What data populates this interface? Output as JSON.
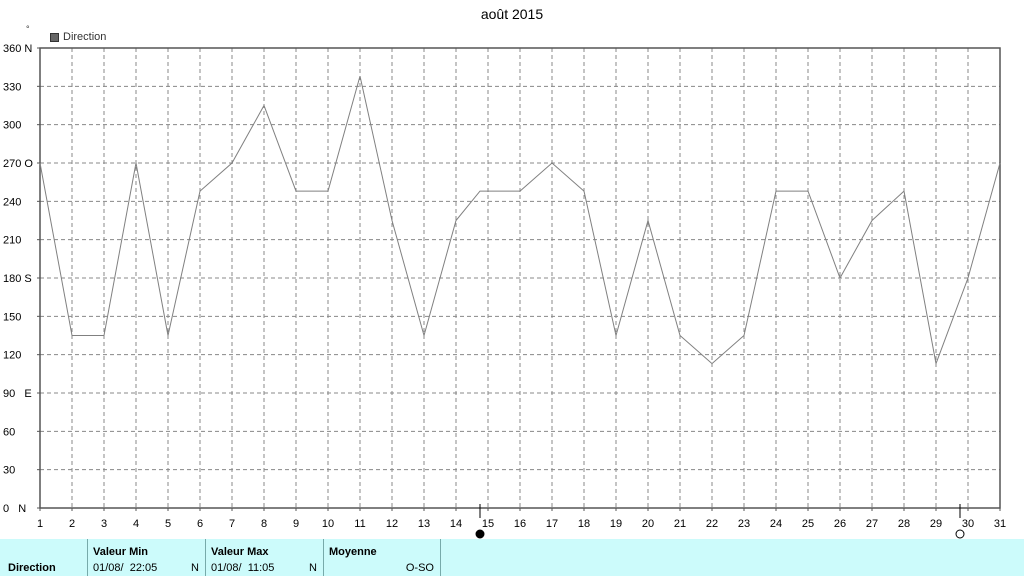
{
  "title": "août 2015",
  "legend": {
    "label": "Direction"
  },
  "degree_mark": "°",
  "footer": {
    "row_label": "Direction",
    "min": {
      "header": "Valeur Min",
      "date": "01/08/  22:05",
      "dir": "N"
    },
    "max": {
      "header": "Valeur Max",
      "date": "01/08/  11:05",
      "dir": "N"
    },
    "avg": {
      "header": "Moyenne",
      "value": "O-SO"
    }
  },
  "chart_data": {
    "type": "line",
    "title": "août 2015",
    "ylim": [
      0,
      360
    ],
    "xlim": [
      1,
      31
    ],
    "grid": true,
    "legend_position": "top-left",
    "y_ticks": [
      {
        "v": 0,
        "label": "0   N"
      },
      {
        "v": 30,
        "label": "30"
      },
      {
        "v": 60,
        "label": "60"
      },
      {
        "v": 90,
        "label": "90   E"
      },
      {
        "v": 120,
        "label": "120"
      },
      {
        "v": 150,
        "label": "150"
      },
      {
        "v": 180,
        "label": "180 S"
      },
      {
        "v": 210,
        "label": "210"
      },
      {
        "v": 240,
        "label": "240"
      },
      {
        "v": 270,
        "label": "270 O"
      },
      {
        "v": 300,
        "label": "300"
      },
      {
        "v": 330,
        "label": "330"
      },
      {
        "v": 360,
        "label": "360 N"
      }
    ],
    "x_ticks": [
      "1",
      "2",
      "3",
      "4",
      "5",
      "6",
      "7",
      "8",
      "9",
      "10",
      "11",
      "12",
      "13",
      "14",
      "15",
      "16",
      "17",
      "18",
      "19",
      "20",
      "21",
      "22",
      "23",
      "24",
      "25",
      "26",
      "27",
      "28",
      "29",
      "30",
      "31"
    ],
    "moon_markers": [
      {
        "x": 14.75,
        "phase": "full"
      },
      {
        "x": 29.75,
        "phase": "new"
      }
    ],
    "series": [
      {
        "name": "Direction",
        "color": "#808080",
        "points": [
          [
            1,
            270
          ],
          [
            2,
            135
          ],
          [
            3,
            135
          ],
          [
            4,
            270
          ],
          [
            5,
            135
          ],
          [
            6,
            248
          ],
          [
            7,
            270
          ],
          [
            8,
            315
          ],
          [
            9,
            248
          ],
          [
            10,
            248
          ],
          [
            11,
            338
          ],
          [
            12,
            225
          ],
          [
            13,
            135
          ],
          [
            14,
            225
          ],
          [
            14.75,
            248
          ],
          [
            15,
            248
          ],
          [
            16,
            248
          ],
          [
            17,
            270
          ],
          [
            18,
            248
          ],
          [
            19,
            135
          ],
          [
            20,
            225
          ],
          [
            21,
            135
          ],
          [
            22,
            113
          ],
          [
            23,
            135
          ],
          [
            24,
            248
          ],
          [
            25,
            248
          ],
          [
            26,
            180
          ],
          [
            27,
            225
          ],
          [
            28,
            248
          ],
          [
            29,
            113
          ],
          [
            30,
            180
          ],
          [
            31,
            270
          ]
        ]
      }
    ]
  }
}
